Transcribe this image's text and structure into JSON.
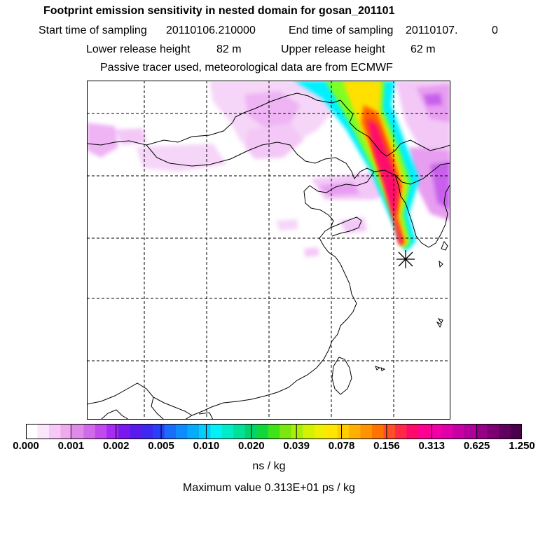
{
  "header": {
    "title": "Footprint emission sensitivity in nested domain for gosan_201101",
    "start_label": "Start time of sampling",
    "start_value": "20110106.210000",
    "end_label": "End time of sampling",
    "end_value": "20110107.",
    "end_suffix": "0",
    "lower_label": "Lower release height",
    "lower_value": "82 m",
    "upper_label": "Upper release height",
    "upper_value": "62 m",
    "info": "Passive tracer used, meteorological data are from ECMWF"
  },
  "colorbar": {
    "ticks": [
      "0.000",
      "0.001",
      "0.002",
      "0.005",
      "0.010",
      "0.020",
      "0.039",
      "0.078",
      "0.156",
      "0.313",
      "0.625",
      "1.250"
    ],
    "units": "ns / kg",
    "colors": [
      "#ffffff",
      "#fbe6fb",
      "#f5c8f5",
      "#efaaef",
      "#e08ae8",
      "#d06ae8",
      "#c04aee",
      "#a82af4",
      "#7a18f0",
      "#5a1aee",
      "#3e28f2",
      "#2a40f6",
      "#1a6cfa",
      "#0e8cfc",
      "#06acfc",
      "#04ccfc",
      "#00f2f6",
      "#00ecc8",
      "#00e098",
      "#00d46a",
      "#10d83c",
      "#40e218",
      "#7ae810",
      "#a8ee08",
      "#d2f200",
      "#eef000",
      "#ffe600",
      "#ffcc00",
      "#ffb000",
      "#ff9400",
      "#ff7400",
      "#ff5028",
      "#ff2a48",
      "#ff0a6a",
      "#ff0090",
      "#f400a4",
      "#e000aa",
      "#c800a4",
      "#b0009a",
      "#960088",
      "#7c0074",
      "#620060",
      "#4a004a"
    ]
  },
  "max_value": "Maximum value  0.313E+01 ps / kg",
  "map": {
    "receptor": "gosan",
    "plume_colors": [
      "#00f0ff",
      "#80ff20",
      "#ffe000",
      "#ff6000",
      "#ff0a6a",
      "#ff0060"
    ],
    "background_colors": [
      "#f2c8f6",
      "#e38cf2",
      "#c850ee"
    ]
  }
}
